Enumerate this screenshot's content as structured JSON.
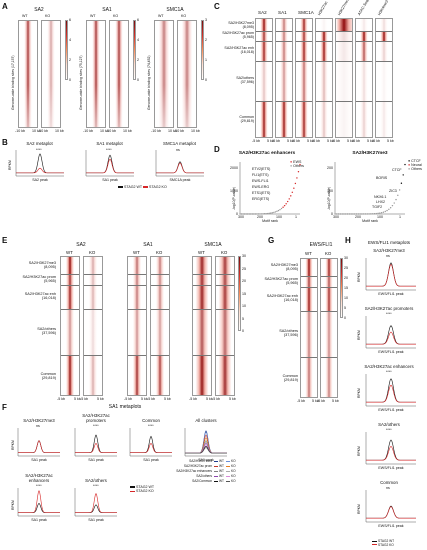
{
  "panels": {
    "A": {
      "label": "A",
      "groups": [
        {
          "title": "SA2",
          "cols": [
            "WT",
            "KO"
          ],
          "ylabel": "Genome-wide binding sites\n(17,157)"
        },
        {
          "title": "SA1",
          "cols": [
            "WT",
            "KO"
          ],
          "ylabel": "Genome-wide binding sites\n(75,127)"
        },
        {
          "title": "SMC1A",
          "cols": [
            "WT",
            "KO"
          ],
          "ylabel": "Genome-wide binding sites\n(74,452)"
        }
      ],
      "xticks": [
        "-10 kb",
        "10 kb"
      ]
    },
    "B": {
      "label": "B",
      "plots": [
        {
          "title": "SA2 metaplot",
          "sig": "****",
          "xlabel": "SA2 peak",
          "ylabel": "RPKM"
        },
        {
          "title": "SA1 metaplot",
          "sig": "****",
          "xlabel": "SA1 peak",
          "ylabel": ""
        },
        {
          "title": "SMC1A metaplot",
          "sig": "ns",
          "xlabel": "SMC1A peak",
          "ylabel": ""
        }
      ],
      "legend": [
        "STAG2 WT",
        "STAG2 KO"
      ]
    },
    "C": {
      "label": "C",
      "cols": [
        "SA2",
        "SA1",
        "SMC1A",
        "H3K27ac",
        "H3K27me3",
        "ATAC-Seq",
        "H3K4me3"
      ],
      "rows": [
        {
          "name": "SA2/H3K27me3",
          "count": "(8,095)"
        },
        {
          "name": "SA2/H3K27ac prom",
          "count": "(5,965)"
        },
        {
          "name": "SA2/H3K27ac enh",
          "count": "(16,018)"
        },
        {
          "name": "SA2/others",
          "count": "(37,596)"
        },
        {
          "name": "Common",
          "count": "(29,819)"
        }
      ],
      "xticks": [
        "-5 kb",
        "5 kb"
      ]
    },
    "D": {
      "label": "D",
      "left": {
        "title": "SA2/H3K27ac enhancers",
        "ylabel": "-log10(P-value)",
        "xlabel": "Motif rank",
        "legend": [
          "EWS",
          "Others"
        ],
        "annotations": [
          "ETV2(ETS)",
          "FLI1(ETS)",
          "EWS-FLI1",
          "EWS-ERG",
          "ETS1(ETS)",
          "ERG(ETS)"
        ],
        "xticks": [
          "300",
          "200",
          "100",
          "1"
        ],
        "yticks": [
          "0",
          "1000",
          "2000"
        ]
      },
      "right": {
        "title": "SA2/H3K27me3",
        "ylabel": "-log10(P-value)",
        "xlabel": "Motif rank",
        "legend": [
          "CTCF",
          "Neural",
          "Others"
        ],
        "annotations": [
          "CTCF",
          "BORIS",
          "ZIC3",
          "NKX6.1",
          "LHX2",
          "TGIF2"
        ],
        "xticks": [
          "300",
          "200",
          "100",
          "1"
        ],
        "yticks": [
          "0",
          "100",
          "200"
        ]
      }
    },
    "E": {
      "label": "E",
      "groups": [
        {
          "title": "SA2",
          "cols": [
            "WT",
            "KO"
          ]
        },
        {
          "title": "SA1",
          "cols": [
            "WT",
            "KO"
          ]
        },
        {
          "title": "SMC1A",
          "cols": [
            "WT",
            "KO"
          ]
        }
      ],
      "rows": [
        {
          "name": "SA2/H3K27me3",
          "count": "(8,095)"
        },
        {
          "name": "SA2/H3K27ac prom",
          "count": "(5,965)"
        },
        {
          "name": "SA2/H3K27ac enh",
          "count": "(16,018)"
        },
        {
          "name": "SA2/others",
          "count": "(37,596)"
        },
        {
          "name": "Common",
          "count": "(29,819)"
        }
      ],
      "xticks": [
        "-5 kb",
        "5 kb"
      ]
    },
    "F": {
      "label": "F",
      "title": "SA1 metaplots",
      "plots": [
        {
          "title": "SA2/H3K27me3",
          "sig": "ns",
          "xlabel": "SA1 peak"
        },
        {
          "title": "SA2/H3K27ac\npromoters",
          "sig": "****",
          "xlabel": "SA1 peak"
        },
        {
          "title": "Common",
          "sig": "****",
          "xlabel": "SA1 peak"
        },
        {
          "title": "All clusters",
          "sig": "",
          "xlabel": "SA1 peak"
        },
        {
          "title": "SA2/H3K27ac\nenhancers",
          "sig": "****",
          "xlabel": "SA1 peak"
        },
        {
          "title": "SA2/others",
          "sig": "****",
          "xlabel": "SA1 peak"
        }
      ],
      "ylabel": "RPKM",
      "legend": [
        "STAG2 WT",
        "STAG2 KO"
      ],
      "cluster_legend": [
        {
          "name": "SA2/H3K27me3",
          "wt": "WT",
          "ko": "KO"
        },
        {
          "name": "SA2/H3K27ac prom",
          "wt": "WT",
          "ko": "KO"
        },
        {
          "name": "SA2/H3K27ac enhancers",
          "wt": "WT",
          "ko": "KO"
        },
        {
          "name": "SA2/others",
          "wt": "WT",
          "ko": "KO"
        },
        {
          "name": "SA2/Common",
          "wt": "WT",
          "ko": "KO"
        }
      ]
    },
    "G": {
      "label": "G",
      "title": "EWS/FLI1",
      "cols": [
        "WT",
        "KO"
      ],
      "rows": [
        {
          "name": "SA2/H3K27me3",
          "count": "(8,095)"
        },
        {
          "name": "SA2/H3K27ac prom",
          "count": "(5,965)"
        },
        {
          "name": "SA2/H3K27ac enh",
          "count": "(16,018)"
        },
        {
          "name": "SA2/others",
          "count": "(37,596)"
        },
        {
          "name": "Common",
          "count": "(29,819)"
        }
      ],
      "xticks": [
        "-5 kb",
        "5 kb"
      ]
    },
    "H": {
      "label": "H",
      "title": "EWS/FLI1 metaplots",
      "plots": [
        {
          "title": "SA2/H3K27me3",
          "sig": "ns",
          "xlabel": "EWS/FLI1 peak"
        },
        {
          "title": "SA2/H3K27ac promoters",
          "sig": "****",
          "xlabel": "EWS/FLI1 peak"
        },
        {
          "title": "SA2/H3K27ac enhancers",
          "sig": "****",
          "xlabel": "EWS/FLI1 peak"
        },
        {
          "title": "SA2/others",
          "sig": "****",
          "xlabel": "EWS/FLI1 peak"
        },
        {
          "title": "Common",
          "sig": "ns",
          "xlabel": "EWS/FLI1 peak"
        }
      ],
      "ylabel": "RPKM",
      "legend": [
        "STAG2 WT",
        "STAG2 KO"
      ]
    }
  },
  "colors": {
    "wt": "#111111",
    "ko": "#d62728",
    "heat_dark": "#8b0000",
    "heat_mid": "#e34a33"
  }
}
